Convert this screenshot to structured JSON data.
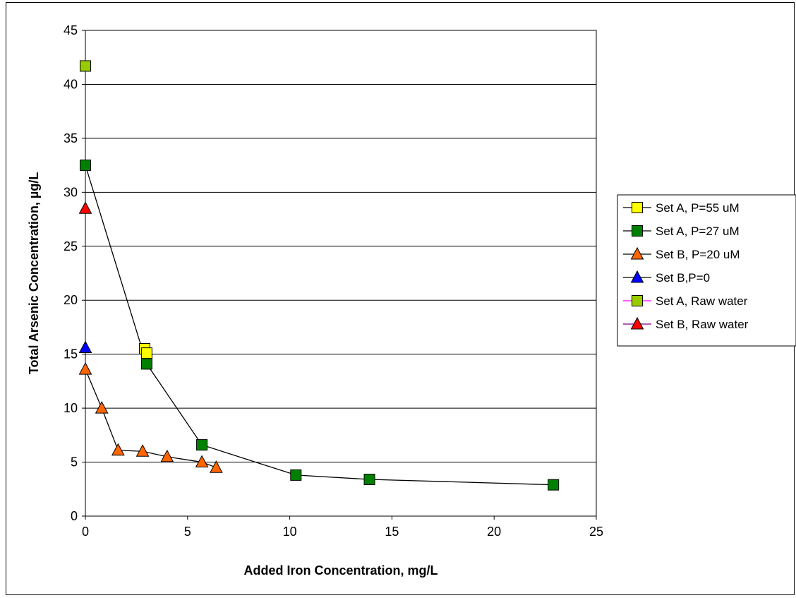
{
  "chart_data": {
    "type": "scatter",
    "xlabel": "Added Iron Concentration, mg/L",
    "ylabel": "Total Arsenic Concentration,  µg/L",
    "xlim": [
      0,
      25
    ],
    "ylim": [
      0,
      45
    ],
    "x_ticks": [
      "0",
      "5",
      "10",
      "15",
      "20",
      "25"
    ],
    "y_ticks": [
      "0",
      "5",
      "10",
      "15",
      "20",
      "25",
      "30",
      "35",
      "40",
      "45"
    ],
    "grid": "horizontal major gridlines",
    "legend_position": "right",
    "series": [
      {
        "name": "Set A, P=55 uM",
        "marker": "square",
        "fill": "#ffff00",
        "line": "#000000",
        "x": [
          2.9,
          3.0
        ],
        "y": [
          15.5,
          15.1
        ]
      },
      {
        "name": "Set A, P=27 uM",
        "marker": "square",
        "fill": "#008000",
        "line": "#000000",
        "x": [
          0,
          3.0,
          5.7,
          10.3,
          13.9,
          22.9
        ],
        "y": [
          32.5,
          14.1,
          6.6,
          3.8,
          3.4,
          2.9
        ]
      },
      {
        "name": "Set B, P=20 uM",
        "marker": "triangle",
        "fill": "#ff6600",
        "line": "#000000",
        "x": [
          0,
          0.8,
          1.6,
          2.8,
          4.0,
          5.7,
          6.4
        ],
        "y": [
          13.6,
          10.0,
          6.1,
          6.0,
          5.5,
          5.0,
          4.5
        ]
      },
      {
        "name": "Set B,P=0",
        "marker": "triangle",
        "fill": "#0000ff",
        "line": "#000000",
        "x": [
          0
        ],
        "y": [
          15.6
        ]
      },
      {
        "name": "Set A, Raw water",
        "marker": "square",
        "fill": "#99cc00",
        "line": "#ff00ff",
        "x": [
          0
        ],
        "y": [
          41.7
        ]
      },
      {
        "name": "Set B, Raw water",
        "marker": "triangle",
        "fill": "#ff0000",
        "line": "#800080",
        "x": [
          0
        ],
        "y": [
          28.5
        ]
      }
    ]
  }
}
